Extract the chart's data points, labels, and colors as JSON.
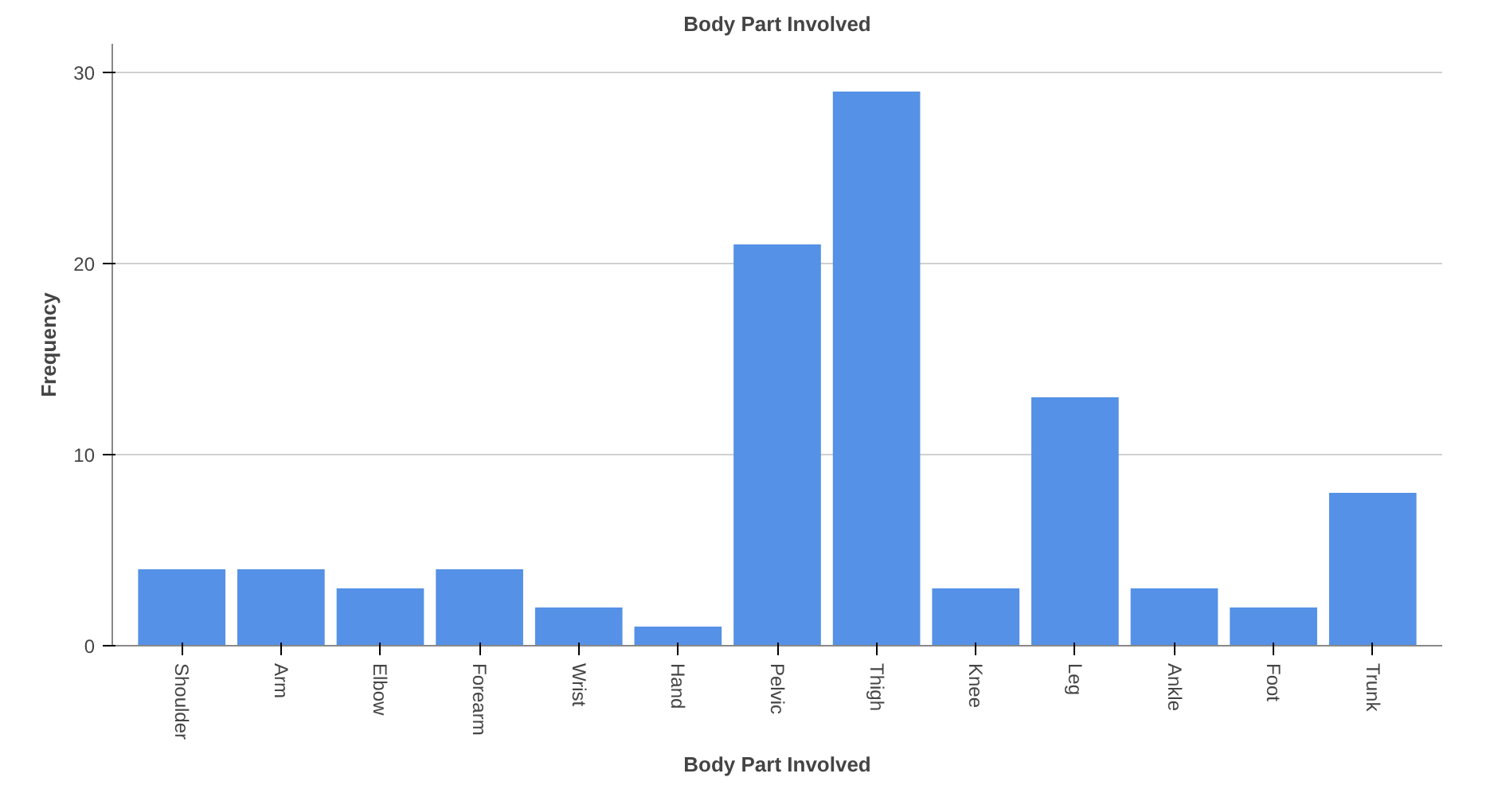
{
  "chart_data": {
    "type": "bar",
    "title": "Body Part Involved",
    "xlabel": "Body Part Involved",
    "ylabel": "Frequency",
    "categories": [
      "Shoulder",
      "Arm",
      "Elbow",
      "Forearm",
      "Wrist",
      "Hand",
      "Pelvic",
      "Thigh",
      "Knee",
      "Leg",
      "Ankle",
      "Foot",
      "Trunk"
    ],
    "values": [
      4,
      4,
      3,
      4,
      2,
      1,
      21,
      29,
      3,
      13,
      3,
      2,
      8
    ],
    "color": "#5591e6",
    "ylim": [
      0,
      31.5
    ],
    "yticks": [
      0,
      10,
      20,
      30
    ],
    "grid": "y"
  }
}
